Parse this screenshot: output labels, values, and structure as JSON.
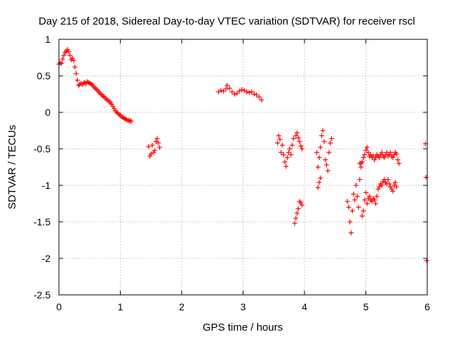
{
  "chart_data": {
    "type": "scatter",
    "title": "Day 215 of 2018, Sidereal Day-to-day VTEC variation (SDTVAR) for receiver rscl",
    "xlabel": "GPS time / hours",
    "ylabel": "SDTVAR / TECUs",
    "xlim": [
      0,
      6
    ],
    "ylim": [
      -2.5,
      1
    ],
    "xticks": [
      "0",
      "1",
      "2",
      "3",
      "4",
      "5",
      "6"
    ],
    "yticks": [
      "1",
      "0.5",
      "0",
      "-0.5",
      "-1",
      "-1.5",
      "-2",
      "-2.5"
    ],
    "grid": true,
    "marker": "+",
    "color": "#ff0000",
    "series": [
      {
        "name": "SDTVAR",
        "points": [
          [
            0.0,
            0.66
          ],
          [
            0.02,
            0.68
          ],
          [
            0.04,
            0.67
          ],
          [
            0.06,
            0.73
          ],
          [
            0.08,
            0.78
          ],
          [
            0.1,
            0.82
          ],
          [
            0.12,
            0.84
          ],
          [
            0.14,
            0.86
          ],
          [
            0.16,
            0.83
          ],
          [
            0.18,
            0.78
          ],
          [
            0.2,
            0.72
          ],
          [
            0.22,
            0.74
          ],
          [
            0.24,
            0.71
          ],
          [
            0.26,
            0.62
          ],
          [
            0.28,
            0.53
          ],
          [
            0.3,
            0.44
          ],
          [
            0.32,
            0.37
          ],
          [
            0.34,
            0.38
          ],
          [
            0.36,
            0.4
          ],
          [
            0.38,
            0.38
          ],
          [
            0.4,
            0.4
          ],
          [
            0.42,
            0.41
          ],
          [
            0.44,
            0.39
          ],
          [
            0.46,
            0.42
          ],
          [
            0.48,
            0.41
          ],
          [
            0.5,
            0.4
          ],
          [
            0.52,
            0.39
          ],
          [
            0.54,
            0.38
          ],
          [
            0.56,
            0.36
          ],
          [
            0.58,
            0.34
          ],
          [
            0.6,
            0.32
          ],
          [
            0.62,
            0.31
          ],
          [
            0.64,
            0.29
          ],
          [
            0.66,
            0.27
          ],
          [
            0.68,
            0.25
          ],
          [
            0.7,
            0.24
          ],
          [
            0.72,
            0.22
          ],
          [
            0.74,
            0.21
          ],
          [
            0.76,
            0.19
          ],
          [
            0.78,
            0.17
          ],
          [
            0.8,
            0.17
          ],
          [
            0.82,
            0.15
          ],
          [
            0.84,
            0.13
          ],
          [
            0.86,
            0.11
          ],
          [
            0.88,
            0.08
          ],
          [
            0.9,
            0.05
          ],
          [
            0.92,
            0.02
          ],
          [
            0.94,
            0.0
          ],
          [
            0.96,
            -0.01
          ],
          [
            0.98,
            -0.03
          ],
          [
            1.0,
            -0.04
          ],
          [
            1.02,
            -0.06
          ],
          [
            1.04,
            -0.07
          ],
          [
            1.06,
            -0.08
          ],
          [
            1.08,
            -0.09
          ],
          [
            1.1,
            -0.1
          ],
          [
            1.12,
            -0.11
          ],
          [
            1.14,
            -0.11
          ],
          [
            1.16,
            -0.12
          ],
          [
            1.18,
            -0.12
          ],
          [
            1.46,
            -0.47
          ],
          [
            1.48,
            -0.6
          ],
          [
            1.5,
            -0.57
          ],
          [
            1.52,
            -0.45
          ],
          [
            1.54,
            -0.55
          ],
          [
            1.56,
            -0.52
          ],
          [
            1.58,
            -0.4
          ],
          [
            1.6,
            -0.36
          ],
          [
            1.62,
            -0.42
          ],
          [
            1.64,
            -0.48
          ],
          [
            2.6,
            0.28
          ],
          [
            2.64,
            0.3
          ],
          [
            2.68,
            0.29
          ],
          [
            2.72,
            0.32
          ],
          [
            2.74,
            0.37
          ],
          [
            2.78,
            0.33
          ],
          [
            2.82,
            0.28
          ],
          [
            2.86,
            0.25
          ],
          [
            2.9,
            0.26
          ],
          [
            2.94,
            0.29
          ],
          [
            2.98,
            0.31
          ],
          [
            3.02,
            0.3
          ],
          [
            3.06,
            0.28
          ],
          [
            3.1,
            0.27
          ],
          [
            3.14,
            0.28
          ],
          [
            3.18,
            0.25
          ],
          [
            3.22,
            0.24
          ],
          [
            3.26,
            0.21
          ],
          [
            3.3,
            0.17
          ],
          [
            3.56,
            -0.42
          ],
          [
            3.58,
            -0.32
          ],
          [
            3.6,
            -0.37
          ],
          [
            3.62,
            -0.55
          ],
          [
            3.64,
            -0.45
          ],
          [
            3.66,
            -0.58
          ],
          [
            3.68,
            -0.68
          ],
          [
            3.7,
            -0.74
          ],
          [
            3.72,
            -0.62
          ],
          [
            3.74,
            -0.55
          ],
          [
            3.76,
            -0.5
          ],
          [
            3.78,
            -0.58
          ],
          [
            3.8,
            -0.45
          ],
          [
            3.82,
            -0.36
          ],
          [
            3.84,
            -1.52
          ],
          [
            3.86,
            -1.45
          ],
          [
            3.88,
            -1.38
          ],
          [
            3.9,
            -1.32
          ],
          [
            3.92,
            -1.22
          ],
          [
            3.94,
            -1.24
          ],
          [
            3.96,
            -1.27
          ],
          [
            3.86,
            -0.32
          ],
          [
            3.88,
            -0.28
          ],
          [
            3.9,
            -0.35
          ],
          [
            3.92,
            -0.4
          ],
          [
            3.94,
            -0.46
          ],
          [
            3.96,
            -0.5
          ],
          [
            4.2,
            -0.55
          ],
          [
            4.22,
            -0.75
          ],
          [
            4.24,
            -0.62
          ],
          [
            4.26,
            -0.48
          ],
          [
            4.28,
            -0.32
          ],
          [
            4.3,
            -0.25
          ],
          [
            4.32,
            -0.4
          ],
          [
            4.34,
            -0.65
          ],
          [
            4.36,
            -0.72
          ],
          [
            4.38,
            -0.8
          ],
          [
            4.4,
            -0.55
          ],
          [
            4.42,
            -0.42
          ],
          [
            4.44,
            -0.36
          ],
          [
            4.22,
            -1.03
          ],
          [
            4.24,
            -0.96
          ],
          [
            4.26,
            -0.9
          ],
          [
            4.7,
            -1.22
          ],
          [
            4.72,
            -1.3
          ],
          [
            4.74,
            -1.5
          ],
          [
            4.76,
            -1.65
          ],
          [
            4.78,
            -1.35
          ],
          [
            4.8,
            -1.12
          ],
          [
            4.82,
            -1.2
          ],
          [
            4.84,
            -1.0
          ],
          [
            4.86,
            -1.15
          ],
          [
            4.88,
            -1.3
          ],
          [
            4.9,
            -0.92
          ],
          [
            4.92,
            -0.7
          ],
          [
            4.94,
            -1.42
          ],
          [
            4.96,
            -1.35
          ],
          [
            4.98,
            -1.2
          ],
          [
            5.0,
            -1.1
          ],
          [
            5.02,
            -1.25
          ],
          [
            5.04,
            -1.18
          ],
          [
            5.06,
            -1.15
          ],
          [
            5.08,
            -1.2
          ],
          [
            5.1,
            -1.22
          ],
          [
            5.12,
            -1.18
          ],
          [
            5.14,
            -1.2
          ],
          [
            5.16,
            -1.25
          ],
          [
            5.18,
            -1.15
          ],
          [
            5.2,
            -1.05
          ],
          [
            5.22,
            -1.02
          ],
          [
            5.24,
            -0.98
          ],
          [
            5.26,
            -1.0
          ],
          [
            5.28,
            -0.95
          ],
          [
            5.3,
            -0.92
          ],
          [
            5.32,
            -0.96
          ],
          [
            5.34,
            -0.98
          ],
          [
            5.36,
            -0.92
          ],
          [
            5.38,
            -0.98
          ],
          [
            5.4,
            -1.02
          ],
          [
            5.42,
            -1.05
          ],
          [
            5.44,
            -1.08
          ],
          [
            5.46,
            -1.0
          ],
          [
            5.48,
            -0.96
          ],
          [
            5.5,
            -1.02
          ],
          [
            4.9,
            -0.7
          ],
          [
            4.92,
            -0.75
          ],
          [
            4.94,
            -0.68
          ],
          [
            4.96,
            -0.62
          ],
          [
            4.98,
            -0.58
          ],
          [
            5.0,
            -0.52
          ],
          [
            5.02,
            -0.48
          ],
          [
            5.04,
            -0.55
          ],
          [
            5.06,
            -0.6
          ],
          [
            5.08,
            -0.58
          ],
          [
            5.1,
            -0.62
          ],
          [
            5.12,
            -0.6
          ],
          [
            5.14,
            -0.65
          ],
          [
            5.16,
            -0.62
          ],
          [
            5.18,
            -0.58
          ],
          [
            5.2,
            -0.6
          ],
          [
            5.22,
            -0.62
          ],
          [
            5.24,
            -0.58
          ],
          [
            5.26,
            -0.55
          ],
          [
            5.28,
            -0.6
          ],
          [
            5.3,
            -0.62
          ],
          [
            5.32,
            -0.58
          ],
          [
            5.34,
            -0.55
          ],
          [
            5.36,
            -0.6
          ],
          [
            5.38,
            -0.58
          ],
          [
            5.4,
            -0.55
          ],
          [
            5.42,
            -0.6
          ],
          [
            5.44,
            -0.62
          ],
          [
            5.46,
            -0.58
          ],
          [
            5.48,
            -0.55
          ],
          [
            5.5,
            -0.57
          ],
          [
            5.52,
            -0.65
          ],
          [
            5.54,
            -0.7
          ],
          [
            5.97,
            -0.43
          ],
          [
            5.98,
            -0.89
          ],
          [
            5.99,
            -2.03
          ]
        ]
      }
    ]
  }
}
